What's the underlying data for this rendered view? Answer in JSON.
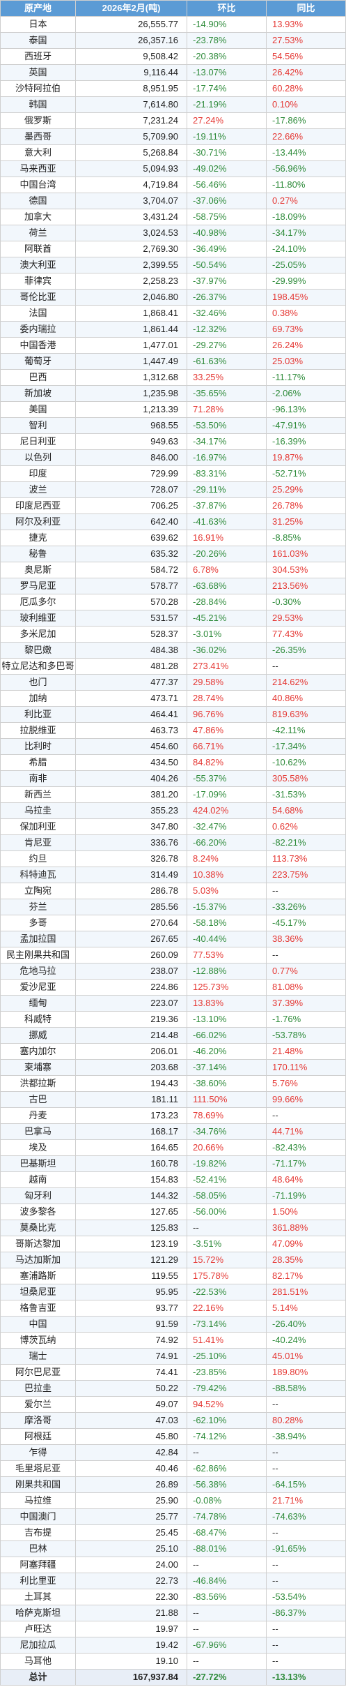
{
  "headers": {
    "origin": "原产地",
    "amount": "2026年2月(吨)",
    "mom": "环比",
    "yoy": "同比"
  },
  "colors": {
    "header_bg": "#5b9bd5",
    "up": "#e53935",
    "down": "#2e8b3a"
  },
  "rows": [
    [
      "日本",
      "26,555.77",
      "-14.90%",
      "13.93%"
    ],
    [
      "泰国",
      "26,357.16",
      "-23.78%",
      "27.53%"
    ],
    [
      "西班牙",
      "9,508.42",
      "-20.38%",
      "54.56%"
    ],
    [
      "英国",
      "9,116.44",
      "-13.07%",
      "26.42%"
    ],
    [
      "沙特阿拉伯",
      "8,951.95",
      "-17.74%",
      "60.28%"
    ],
    [
      "韩国",
      "7,614.80",
      "-21.19%",
      "0.10%"
    ],
    [
      "俄罗斯",
      "7,231.24",
      "27.24%",
      "-17.86%"
    ],
    [
      "墨西哥",
      "5,709.90",
      "-19.11%",
      "22.66%"
    ],
    [
      "意大利",
      "5,268.84",
      "-30.71%",
      "-13.44%"
    ],
    [
      "马来西亚",
      "5,094.93",
      "-49.02%",
      "-56.96%"
    ],
    [
      "中国台湾",
      "4,719.84",
      "-56.46%",
      "-11.80%"
    ],
    [
      "德国",
      "3,704.07",
      "-37.06%",
      "0.27%"
    ],
    [
      "加拿大",
      "3,431.24",
      "-58.75%",
      "-18.09%"
    ],
    [
      "荷兰",
      "3,024.53",
      "-40.98%",
      "-34.17%"
    ],
    [
      "阿联酋",
      "2,769.30",
      "-36.49%",
      "-24.10%"
    ],
    [
      "澳大利亚",
      "2,399.55",
      "-50.54%",
      "-25.05%"
    ],
    [
      "菲律宾",
      "2,258.23",
      "-37.97%",
      "-29.99%"
    ],
    [
      "哥伦比亚",
      "2,046.80",
      "-26.37%",
      "198.45%"
    ],
    [
      "法国",
      "1,868.41",
      "-32.46%",
      "0.38%"
    ],
    [
      "委内瑞拉",
      "1,861.44",
      "-12.32%",
      "69.73%"
    ],
    [
      "中国香港",
      "1,477.01",
      "-29.27%",
      "26.24%"
    ],
    [
      "葡萄牙",
      "1,447.49",
      "-61.63%",
      "25.03%"
    ],
    [
      "巴西",
      "1,312.68",
      "33.25%",
      "-11.17%"
    ],
    [
      "新加坡",
      "1,235.98",
      "-35.65%",
      "-2.06%"
    ],
    [
      "美国",
      "1,213.39",
      "71.28%",
      "-96.13%"
    ],
    [
      "智利",
      "968.55",
      "-53.50%",
      "-47.91%"
    ],
    [
      "尼日利亚",
      "949.63",
      "-34.17%",
      "-16.39%"
    ],
    [
      "以色列",
      "846.00",
      "-16.97%",
      "19.87%"
    ],
    [
      "印度",
      "729.99",
      "-83.31%",
      "-52.71%"
    ],
    [
      "波兰",
      "728.07",
      "-29.11%",
      "25.29%"
    ],
    [
      "印度尼西亚",
      "706.25",
      "-37.87%",
      "26.78%"
    ],
    [
      "阿尔及利亚",
      "642.40",
      "-41.63%",
      "31.25%"
    ],
    [
      "捷克",
      "639.62",
      "16.91%",
      "-8.85%"
    ],
    [
      "秘鲁",
      "635.32",
      "-20.26%",
      "161.03%"
    ],
    [
      "奥尼斯",
      "584.72",
      "6.78%",
      "304.53%"
    ],
    [
      "罗马尼亚",
      "578.77",
      "-63.68%",
      "213.56%"
    ],
    [
      "厄瓜多尔",
      "570.28",
      "-28.84%",
      "-0.30%"
    ],
    [
      "玻利维亚",
      "531.57",
      "-45.21%",
      "29.53%"
    ],
    [
      "多米尼加",
      "528.37",
      "-3.01%",
      "77.43%"
    ],
    [
      "黎巴嫩",
      "484.38",
      "-36.02%",
      "-26.35%"
    ],
    [
      "特立尼达和多巴哥",
      "481.28",
      "273.41%",
      "--"
    ],
    [
      "也门",
      "477.37",
      "29.58%",
      "214.62%"
    ],
    [
      "加纳",
      "473.71",
      "28.74%",
      "40.86%"
    ],
    [
      "利比亚",
      "464.41",
      "96.76%",
      "819.63%"
    ],
    [
      "拉脱维亚",
      "463.73",
      "47.86%",
      "-42.11%"
    ],
    [
      "比利时",
      "454.60",
      "66.71%",
      "-17.34%"
    ],
    [
      "希腊",
      "434.50",
      "84.82%",
      "-10.62%"
    ],
    [
      "南非",
      "404.26",
      "-55.37%",
      "305.58%"
    ],
    [
      "新西兰",
      "381.20",
      "-17.09%",
      "-31.53%"
    ],
    [
      "乌拉圭",
      "355.23",
      "424.02%",
      "54.68%"
    ],
    [
      "保加利亚",
      "347.80",
      "-32.47%",
      "0.62%"
    ],
    [
      "肯尼亚",
      "336.76",
      "-66.20%",
      "-82.21%"
    ],
    [
      "约旦",
      "326.78",
      "8.24%",
      "113.73%"
    ],
    [
      "科特迪瓦",
      "314.49",
      "10.38%",
      "223.75%"
    ],
    [
      "立陶宛",
      "286.78",
      "5.03%",
      "--"
    ],
    [
      "芬兰",
      "285.56",
      "-15.37%",
      "-33.26%"
    ],
    [
      "多哥",
      "270.64",
      "-58.18%",
      "-45.17%"
    ],
    [
      "孟加拉国",
      "267.65",
      "-40.44%",
      "38.36%"
    ],
    [
      "民主刚果共和国",
      "260.09",
      "77.53%",
      "--"
    ],
    [
      "危地马拉",
      "238.07",
      "-12.88%",
      "0.77%"
    ],
    [
      "爱沙尼亚",
      "224.86",
      "125.73%",
      "81.08%"
    ],
    [
      "缅甸",
      "223.07",
      "13.83%",
      "37.39%"
    ],
    [
      "科威特",
      "219.36",
      "-13.10%",
      "-1.76%"
    ],
    [
      "挪威",
      "214.48",
      "-66.02%",
      "-53.78%"
    ],
    [
      "塞内加尔",
      "206.01",
      "-46.20%",
      "21.48%"
    ],
    [
      "柬埔寨",
      "203.68",
      "-37.14%",
      "170.11%"
    ],
    [
      "洪都拉斯",
      "194.43",
      "-38.60%",
      "5.76%"
    ],
    [
      "古巴",
      "181.11",
      "111.50%",
      "99.66%"
    ],
    [
      "丹麦",
      "173.23",
      "78.69%",
      "--"
    ],
    [
      "巴拿马",
      "168.17",
      "-34.76%",
      "44.71%"
    ],
    [
      "埃及",
      "164.65",
      "20.66%",
      "-82.43%"
    ],
    [
      "巴基斯坦",
      "160.78",
      "-19.82%",
      "-71.17%"
    ],
    [
      "越南",
      "154.83",
      "-52.41%",
      "48.64%"
    ],
    [
      "匈牙利",
      "144.32",
      "-58.05%",
      "-71.19%"
    ],
    [
      "波多黎各",
      "127.65",
      "-56.00%",
      "1.50%"
    ],
    [
      "莫桑比克",
      "125.83",
      "--",
      "361.88%"
    ],
    [
      "哥斯达黎加",
      "123.19",
      "-3.51%",
      "47.09%"
    ],
    [
      "马达加斯加",
      "121.29",
      "15.72%",
      "28.35%"
    ],
    [
      "塞浦路斯",
      "119.55",
      "175.78%",
      "82.17%"
    ],
    [
      "坦桑尼亚",
      "95.95",
      "-22.53%",
      "281.51%"
    ],
    [
      "格鲁吉亚",
      "93.77",
      "22.16%",
      "5.14%"
    ],
    [
      "中国",
      "91.59",
      "-73.14%",
      "-26.40%"
    ],
    [
      "博茨瓦纳",
      "74.92",
      "51.41%",
      "-40.24%"
    ],
    [
      "瑞士",
      "74.91",
      "-25.10%",
      "45.01%"
    ],
    [
      "阿尔巴尼亚",
      "74.41",
      "-23.85%",
      "189.80%"
    ],
    [
      "巴拉圭",
      "50.22",
      "-79.42%",
      "-88.58%"
    ],
    [
      "爱尔兰",
      "49.07",
      "94.52%",
      "--"
    ],
    [
      "摩洛哥",
      "47.03",
      "-62.10%",
      "80.28%"
    ],
    [
      "阿根廷",
      "45.80",
      "-74.12%",
      "-38.94%"
    ],
    [
      "乍得",
      "42.84",
      "--",
      "--"
    ],
    [
      "毛里塔尼亚",
      "40.46",
      "-62.86%",
      "--"
    ],
    [
      "刚果共和国",
      "26.89",
      "-56.38%",
      "-64.15%"
    ],
    [
      "马拉维",
      "25.90",
      "-0.08%",
      "21.71%"
    ],
    [
      "中国澳门",
      "25.77",
      "-74.78%",
      "-74.63%"
    ],
    [
      "吉布提",
      "25.45",
      "-68.47%",
      "--"
    ],
    [
      "巴林",
      "25.10",
      "-88.01%",
      "-91.65%"
    ],
    [
      "阿塞拜疆",
      "24.00",
      "--",
      "--"
    ],
    [
      "利比里亚",
      "22.73",
      "-46.84%",
      "--"
    ],
    [
      "土耳其",
      "22.30",
      "-83.56%",
      "-53.54%"
    ],
    [
      "哈萨克斯坦",
      "21.88",
      "--",
      "-86.37%"
    ],
    [
      "卢旺达",
      "19.97",
      "--",
      "--"
    ],
    [
      "尼加拉瓜",
      "19.42",
      "-67.96%",
      "--"
    ],
    [
      "马耳他",
      "19.10",
      "--",
      "--"
    ]
  ],
  "total": [
    "总计",
    "167,937.84",
    "-27.72%",
    "-13.13%"
  ]
}
